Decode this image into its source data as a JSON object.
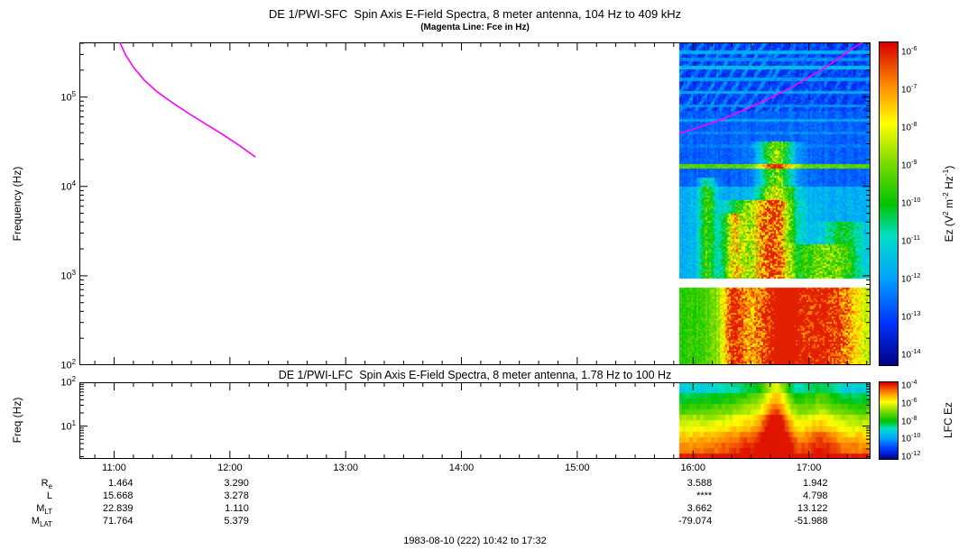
{
  "figure": {
    "background": "#ffffff",
    "footer": "1983-08-10 (222) 10:42 to 17:32"
  },
  "colormap": {
    "positions": [
      0,
      0.13,
      0.27,
      0.4,
      0.5,
      0.63,
      0.75,
      0.87,
      1.0
    ],
    "colors": [
      "#000085",
      "#0033ff",
      "#00a2ff",
      "#00e0c8",
      "#00c400",
      "#7fdc00",
      "#ffff00",
      "#ff8800",
      "#d90000"
    ]
  },
  "chart_data": [
    {
      "type": "heatmap",
      "instrument": "DE 1/PWI-SFC",
      "title": "DE 1/PWI-SFC  Spin Axis E-Field Spectra, 8 meter antenna, 104 Hz to 409 kHz",
      "subtitle": "(Magenta Line: Fce in Hz)",
      "ylabel": "Frequency (Hz)",
      "freq_range_hz": [
        104,
        409000
      ],
      "y_log_range": [
        2,
        5.612
      ],
      "y_tick_exponents": [
        5,
        4,
        3,
        2
      ],
      "x_hours_range": [
        10.7,
        17.5333
      ],
      "x_ticks": [
        "11:00",
        "12:00",
        "13:00",
        "14:00",
        "15:00",
        "16:00",
        "17:00"
      ],
      "data_window_hours": [
        15.88,
        17.5333
      ],
      "colorbar": {
        "label": "Ez (V2 m-2 Hz-1)",
        "label_parts": [
          [
            "Ez (V",
            0
          ],
          [
            "2",
            1
          ],
          [
            " m",
            0
          ],
          [
            "-2",
            1
          ],
          [
            " Hz",
            0
          ],
          [
            "-1",
            1
          ],
          [
            ")",
            0
          ]
        ],
        "tick_exponents": [
          -6,
          -7,
          -8,
          -9,
          -10,
          -11,
          -12,
          -13,
          -14
        ],
        "range_exp": [
          -6,
          -14
        ]
      },
      "fce_line_color": "#ff00ff",
      "fce_line_left_t_logf": [
        [
          11.05,
          5.61
        ],
        [
          11.1,
          5.47
        ],
        [
          11.17,
          5.33
        ],
        [
          11.26,
          5.19
        ],
        [
          11.37,
          5.06
        ],
        [
          11.5,
          4.94
        ],
        [
          11.64,
          4.82
        ],
        [
          11.79,
          4.7
        ],
        [
          11.94,
          4.58
        ],
        [
          12.08,
          4.46
        ],
        [
          12.22,
          4.33
        ]
      ],
      "fce_line_right_t_logf": [
        [
          15.88,
          4.59
        ],
        [
          16.05,
          4.66
        ],
        [
          16.25,
          4.75
        ],
        [
          16.45,
          4.86
        ],
        [
          16.65,
          4.98
        ],
        [
          16.85,
          5.11
        ],
        [
          17.05,
          5.26
        ],
        [
          17.2,
          5.38
        ],
        [
          17.35,
          5.52
        ],
        [
          17.46,
          5.61
        ]
      ],
      "gap_logf": [
        2.87,
        2.97
      ],
      "bands": [
        {
          "logf": [
            4.85,
            5.62
          ],
          "base": 0.09,
          "noise": 0.09,
          "diag": true
        },
        {
          "logf": [
            4.0,
            4.85
          ],
          "base": 0.16,
          "noise": 0.06
        },
        {
          "logf": [
            2.97,
            4.0
          ],
          "base": 0.26,
          "noise": 0.08
        },
        {
          "logf": [
            2.0,
            2.87
          ],
          "base": 0.5,
          "noise": 0.08
        }
      ],
      "stripes": [
        {
          "logf": 5.5,
          "level": 0.26
        },
        {
          "logf": 5.42,
          "level": 0.2
        },
        {
          "logf": 5.33,
          "level": 0.28
        },
        {
          "logf": 5.2,
          "level": 0.22
        },
        {
          "logf": 5.05,
          "level": 0.25
        },
        {
          "logf": 4.9,
          "level": 0.2
        },
        {
          "logf": 4.74,
          "level": 0.24
        },
        {
          "logf": 4.6,
          "level": 0.2
        },
        {
          "logf": 4.45,
          "level": 0.18
        },
        {
          "logf": 4.22,
          "level": 0.55,
          "width": 0.025
        }
      ],
      "events": [
        {
          "t": 16.12,
          "sig": 0.05,
          "logf": [
            2.97,
            4.1
          ],
          "boost": 0.25
        },
        {
          "t": 16.35,
          "sig": 0.06,
          "logf": [
            2.0,
            3.7
          ],
          "boost": 0.28
        },
        {
          "t": 16.55,
          "sig": 0.17,
          "logf": [
            2.97,
            3.85
          ],
          "boost": 0.35
        },
        {
          "t": 16.72,
          "sig": 0.1,
          "logf": [
            2.97,
            4.5
          ],
          "boost": 0.42
        },
        {
          "t": 16.62,
          "sig": 0.25,
          "logf": [
            2.0,
            2.87
          ],
          "boost": 0.33
        },
        {
          "t": 16.8,
          "sig": 0.09,
          "logf": [
            2.0,
            2.87
          ],
          "boost": 0.45
        },
        {
          "t": 17.08,
          "sig": 0.14,
          "logf": [
            2.0,
            3.35
          ],
          "boost": 0.25
        },
        {
          "t": 17.28,
          "sig": 0.2,
          "logf": [
            2.0,
            2.87
          ],
          "boost": 0.28
        },
        {
          "t": 17.3,
          "sig": 0.12,
          "logf": [
            2.97,
            3.6
          ],
          "boost": 0.2
        }
      ]
    },
    {
      "type": "heatmap",
      "instrument": "DE 1/PWI-LFC",
      "title": "DE 1/PWI-LFC  Spin Axis E-Field Spectra, 8 meter antenna, 1.78 Hz to 100 Hz",
      "ylabel": "Freq (Hz)",
      "freq_range_hz": [
        1.78,
        100
      ],
      "y_log_range": [
        0.2504,
        2
      ],
      "y_tick_exponents": [
        2,
        1
      ],
      "x_hours_range": [
        10.7,
        17.5333
      ],
      "data_window_hours": [
        15.88,
        17.5333
      ],
      "colorbar": {
        "label": "LFC Ez",
        "tick_exponents": [
          -4,
          -6,
          -8,
          -10,
          -12
        ],
        "range_exp": [
          -4,
          -12
        ]
      },
      "channels": 14,
      "intensity_top": 0.32,
      "intensity_bottom": 0.97,
      "events": [
        {
          "t": 16.72,
          "sig": 0.08,
          "boost": 0.28
        },
        {
          "t": 16.55,
          "sig": 0.2,
          "boost": 0.1
        },
        {
          "t": 17.1,
          "sig": 0.1,
          "boost": 0.1
        }
      ]
    }
  ],
  "ephemeris": {
    "columns": [
      "11:00",
      "12:00",
      "16:00",
      "17:00"
    ],
    "rows": [
      {
        "label": "R",
        "sub": "e",
        "values": [
          "1.464",
          "3.290",
          "3.588",
          "1.942"
        ]
      },
      {
        "label": "L",
        "sub": "",
        "values": [
          "15.668",
          "3.278",
          "****",
          "4.798"
        ]
      },
      {
        "label": "M",
        "sub": "LT",
        "values": [
          "22.839",
          "1.110",
          "3.662",
          "13.122"
        ]
      },
      {
        "label": "M",
        "sub": "LAT",
        "values": [
          "71.764",
          "5.379",
          "-79.074",
          "-51.988"
        ]
      }
    ]
  }
}
